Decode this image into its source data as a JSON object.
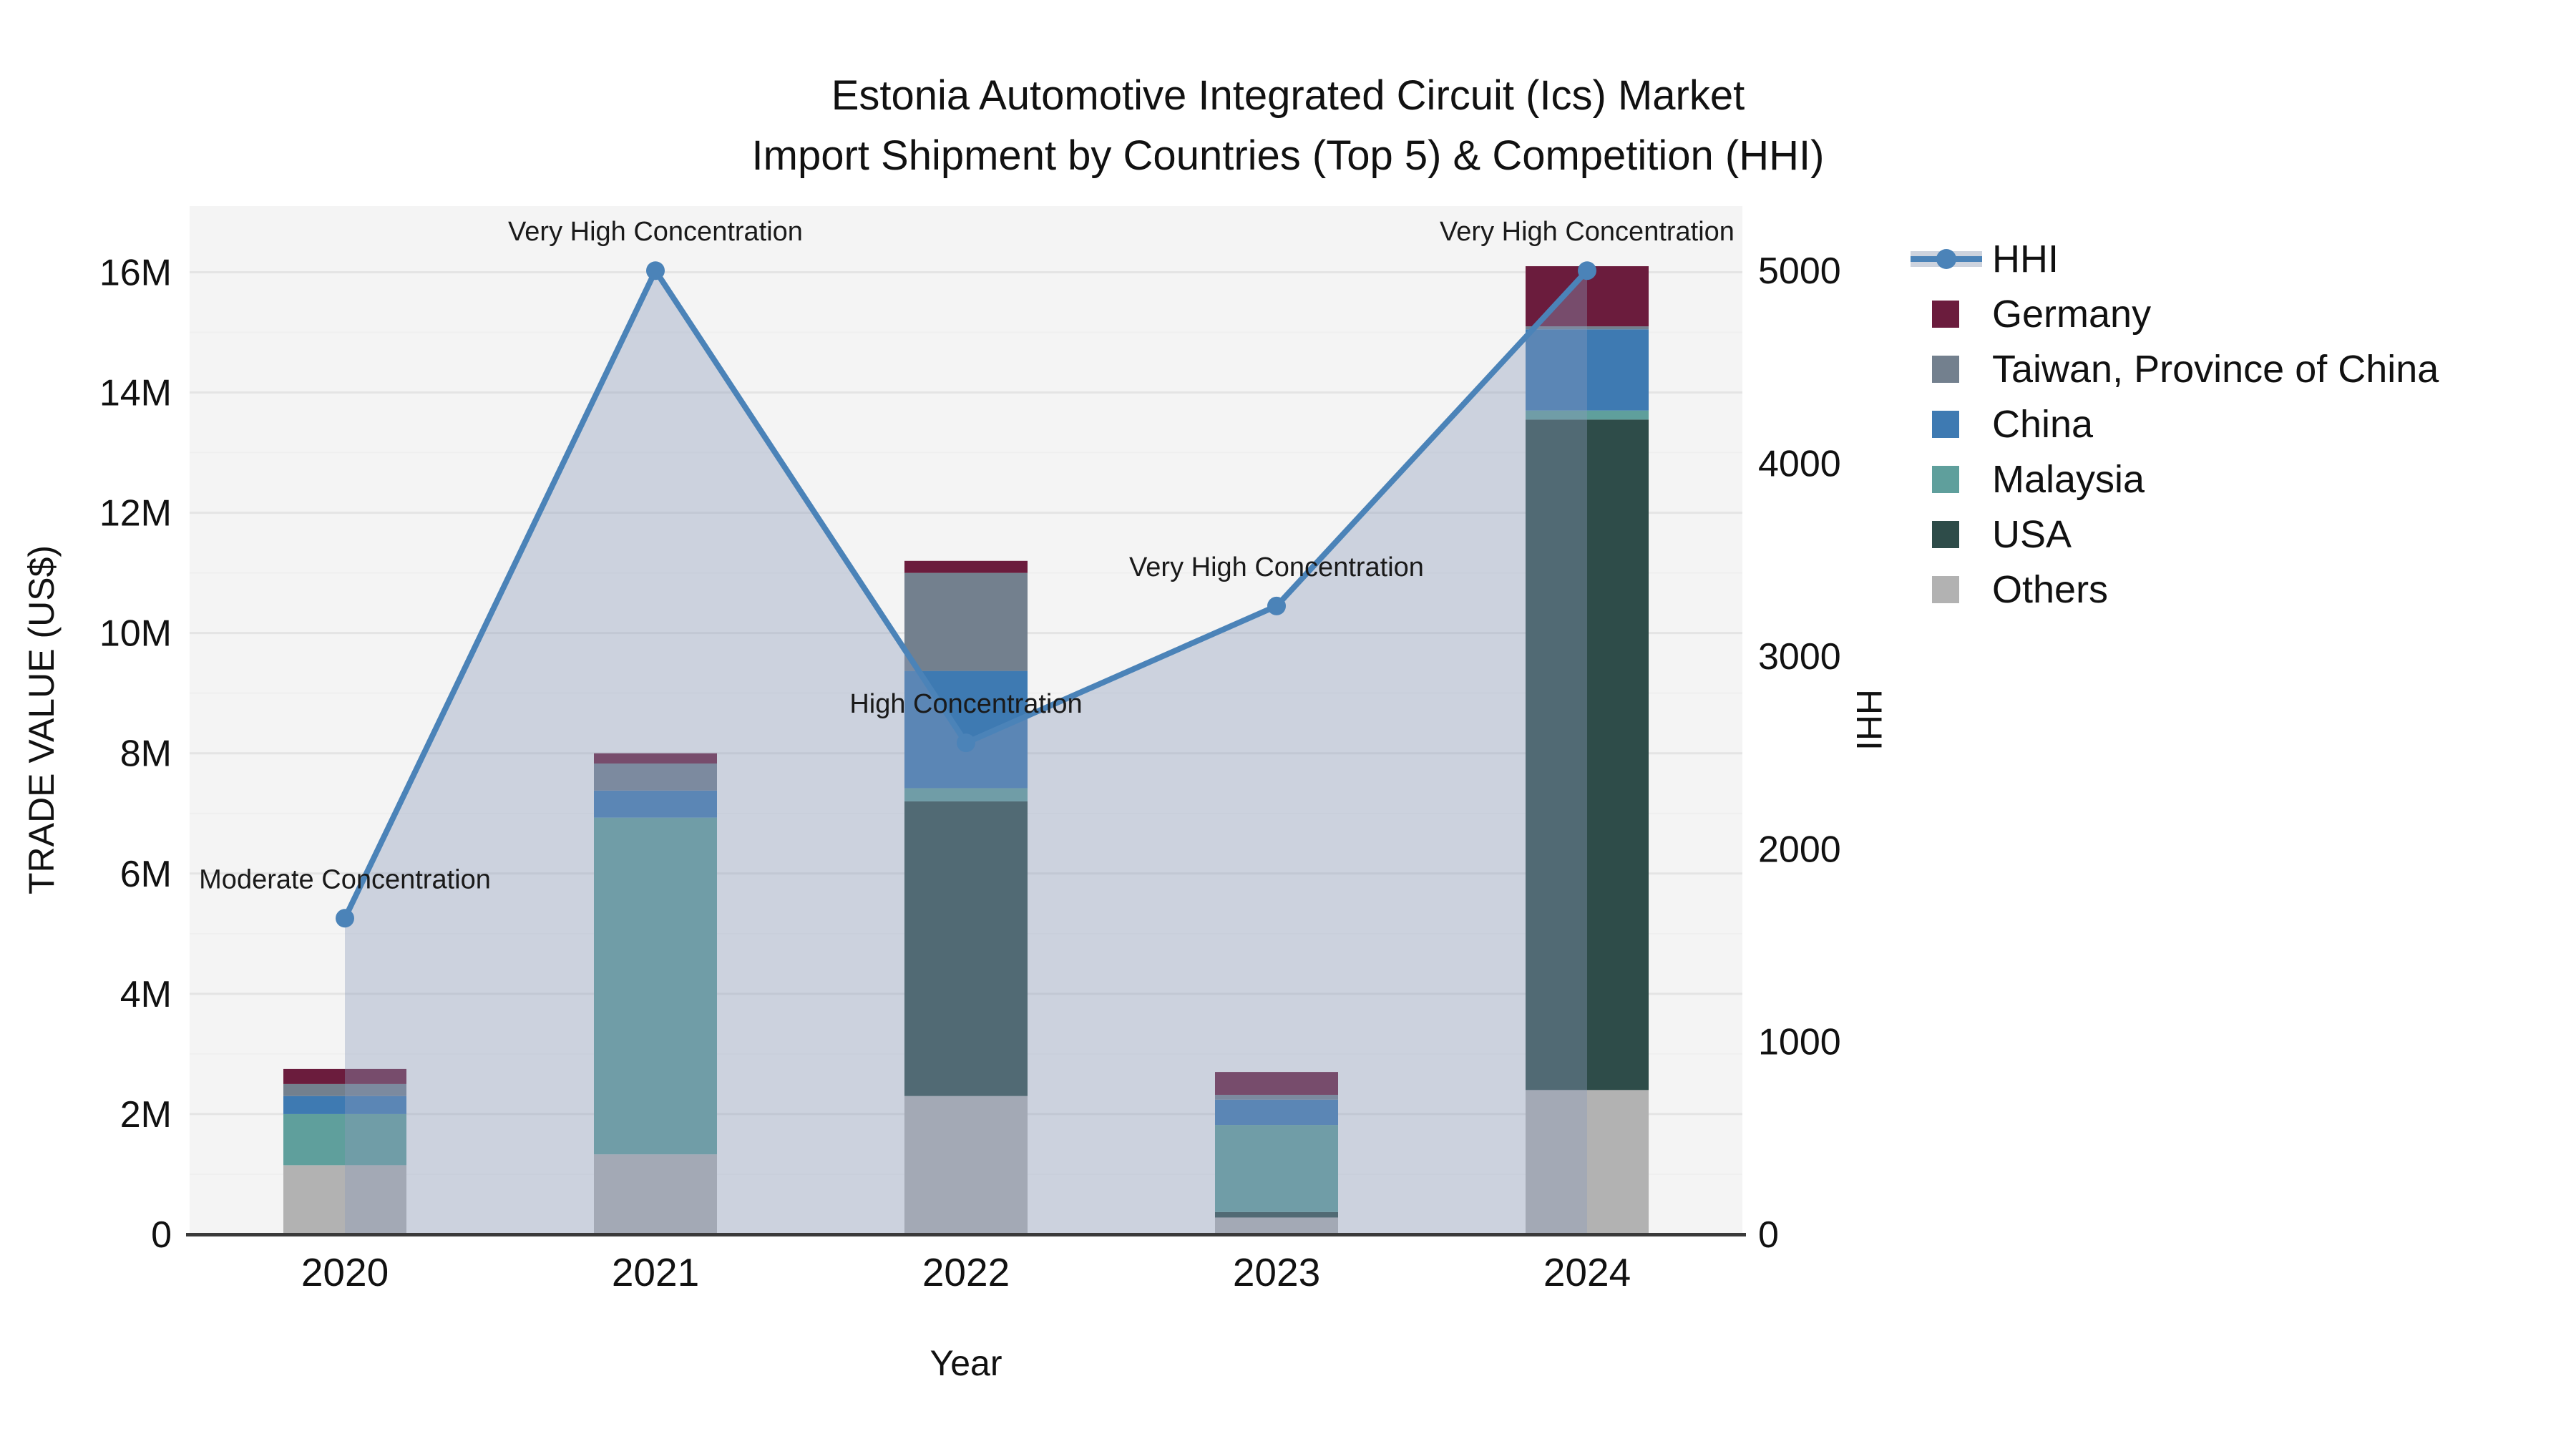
{
  "title": {
    "line1": "Estonia Automotive Integrated Circuit (Ics) Market",
    "line2": "Import Shipment by Countries (Top 5) & Competition (HHI)"
  },
  "axes": {
    "y_left": {
      "label": "TRADE VALUE (US$)",
      "ticks": [
        "0",
        "2M",
        "4M",
        "6M",
        "8M",
        "10M",
        "12M",
        "14M",
        "16M"
      ],
      "tick_values": [
        0,
        2,
        4,
        6,
        8,
        10,
        12,
        14,
        16
      ]
    },
    "y_right": {
      "label": "HHI",
      "ticks": [
        "0",
        "1000",
        "2000",
        "3000",
        "4000",
        "5000"
      ],
      "tick_values": [
        0,
        1000,
        2000,
        3000,
        4000,
        5000
      ]
    },
    "x": {
      "label": "Year"
    }
  },
  "legend": {
    "items": [
      {
        "label": "HHI",
        "type": "line",
        "color": "#4b83b8"
      },
      {
        "label": "Germany",
        "type": "swatch",
        "color": "#6b1c3d"
      },
      {
        "label": "Taiwan, Province of China",
        "type": "swatch",
        "color": "#73808e"
      },
      {
        "label": "China",
        "type": "swatch",
        "color": "#3e7ab2"
      },
      {
        "label": "Malaysia",
        "type": "swatch",
        "color": "#5f9f9c"
      },
      {
        "label": "USA",
        "type": "swatch",
        "color": "#2e4c49"
      },
      {
        "label": "Others",
        "type": "swatch",
        "color": "#b2b2b2"
      }
    ]
  },
  "chart_data": {
    "type": "bar",
    "subtype": "stacked-bars-with-line-overlay",
    "title": "Estonia Automotive Integrated Circuit (Ics) Market Import Shipment by Countries (Top 5) & Competition (HHI)",
    "xlabel": "Year",
    "ylabel_left": "TRADE VALUE (US$)",
    "ylabel_right": "HHI",
    "categories": [
      "2020",
      "2021",
      "2022",
      "2023",
      "2024"
    ],
    "value_unit": "million US$",
    "series": [
      {
        "name": "Others",
        "color": "#b2b2b2",
        "values": [
          1.15,
          1.33,
          2.3,
          0.28,
          2.4
        ]
      },
      {
        "name": "USA",
        "color": "#2e4c49",
        "values": [
          0.0,
          0.0,
          4.9,
          0.09,
          11.15
        ]
      },
      {
        "name": "Malaysia",
        "color": "#5f9f9c",
        "values": [
          0.85,
          5.6,
          0.22,
          1.45,
          0.15
        ]
      },
      {
        "name": "China",
        "color": "#3e7ab2",
        "values": [
          0.3,
          0.45,
          1.95,
          0.42,
          1.35
        ]
      },
      {
        "name": "Taiwan, Province of China",
        "color": "#73808e",
        "values": [
          0.2,
          0.45,
          1.63,
          0.08,
          0.05
        ]
      },
      {
        "name": "Germany",
        "color": "#6b1c3d",
        "values": [
          0.25,
          0.17,
          0.2,
          0.38,
          1.0
        ]
      }
    ],
    "bar_totals": [
      2.75,
      8.0,
      11.2,
      2.7,
      16.1
    ],
    "line_series": {
      "name": "HHI",
      "color": "#4b83b8",
      "area_fill": "rgba(139,156,186,0.38)",
      "values": [
        1640,
        5000,
        2550,
        3260,
        5000
      ]
    },
    "annotations": [
      "Moderate Concentration",
      "Very High Concentration",
      "High Concentration",
      "Very High Concentration",
      "Very High Concentration"
    ],
    "ylim_left": [
      0,
      17.1
    ],
    "ylim_right": [
      0,
      5335
    ],
    "grid": true,
    "legend_position": "right",
    "plot_bg": "#f4f4f4",
    "gridline_major": "#e4e4e4",
    "gridline_minor": "#efefef",
    "axis_line_color": "#3a3a3a"
  }
}
